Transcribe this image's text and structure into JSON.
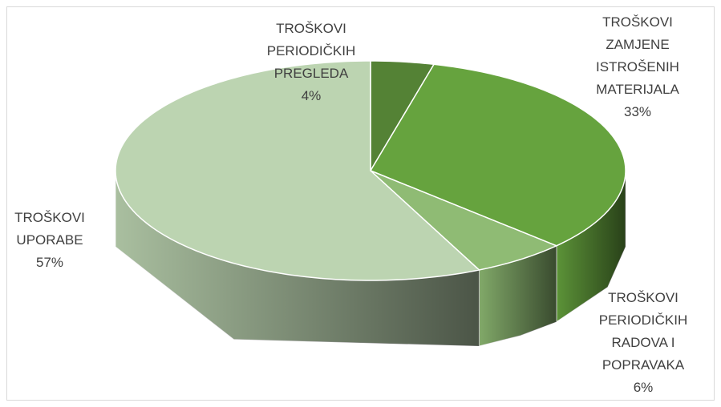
{
  "chart_data": {
    "type": "pie3d",
    "categories": [
      "TROŠKOVI PERIODIČKIH PREGLEDA",
      "TROŠKOVI ZAMJENE ISTROŠENIH MATERIJALA",
      "TROŠKOVI PERIODIČKIH RADOVA I POPRAVAKA",
      "TROŠKOVI UPORABE"
    ],
    "values": [
      4,
      33,
      6,
      57
    ],
    "value_labels": [
      "4%",
      "33%",
      "6%",
      "57%"
    ],
    "colors": [
      "#548235",
      "#66a33e",
      "#8fbb74",
      "#bcd4b1"
    ]
  }
}
